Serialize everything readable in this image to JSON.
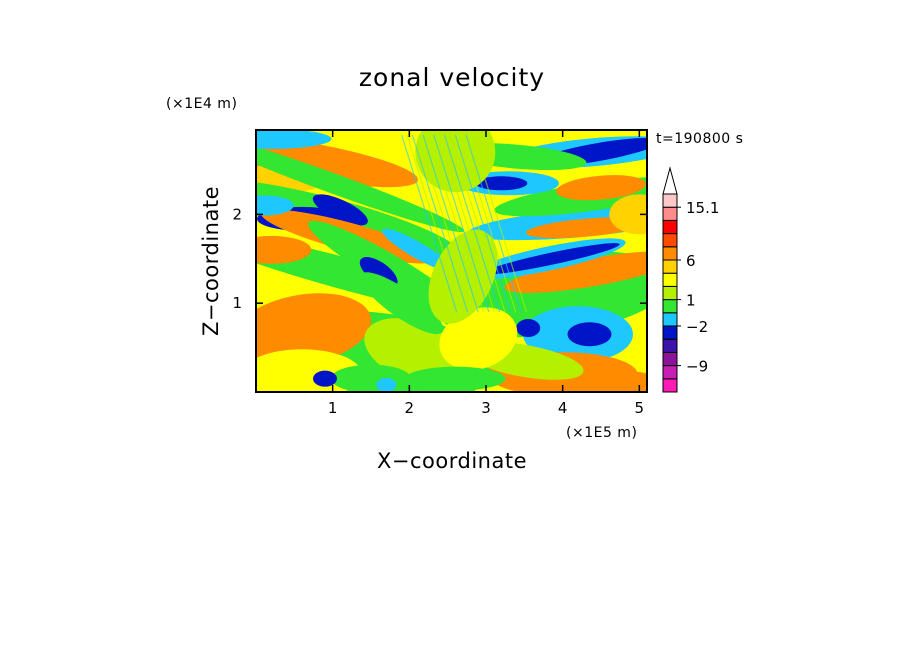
{
  "chart_data": {
    "type": "heatmap",
    "title": "zonal velocity",
    "xlabel": "X−coordinate",
    "ylabel": "Z−coordinate",
    "x_unit": "(×1E5 m)",
    "y_unit": "(×1E4 m)",
    "time_label": "t=190800 s",
    "xlim": [
      0,
      5.1
    ],
    "ylim": [
      0,
      2.95
    ],
    "x_ticks": [
      1,
      2,
      3,
      4,
      5
    ],
    "x_tick_labels": [
      "1",
      "2",
      "3",
      "4",
      "5"
    ],
    "y_ticks": [
      1,
      2
    ],
    "y_tick_labels": [
      "1",
      "2"
    ],
    "colorbar": {
      "colors": [
        "#ff1ab4",
        "#c81eb4",
        "#8c149a",
        "#3c14aa",
        "#0014c8",
        "#1ec8ff",
        "#32e632",
        "#b4f000",
        "#ffff00",
        "#ffd200",
        "#ff8c00",
        "#ff4b00",
        "#ff0000",
        "#ff8c8c",
        "#ffc8c8"
      ],
      "tick_labels": [
        "15.1",
        "6",
        "1",
        "−2",
        "−9"
      ],
      "tick_values": [
        15.1,
        6,
        1,
        -2,
        -9
      ],
      "extend_top": true
    },
    "field_description": "zonal velocity field in the x–z plane"
  }
}
